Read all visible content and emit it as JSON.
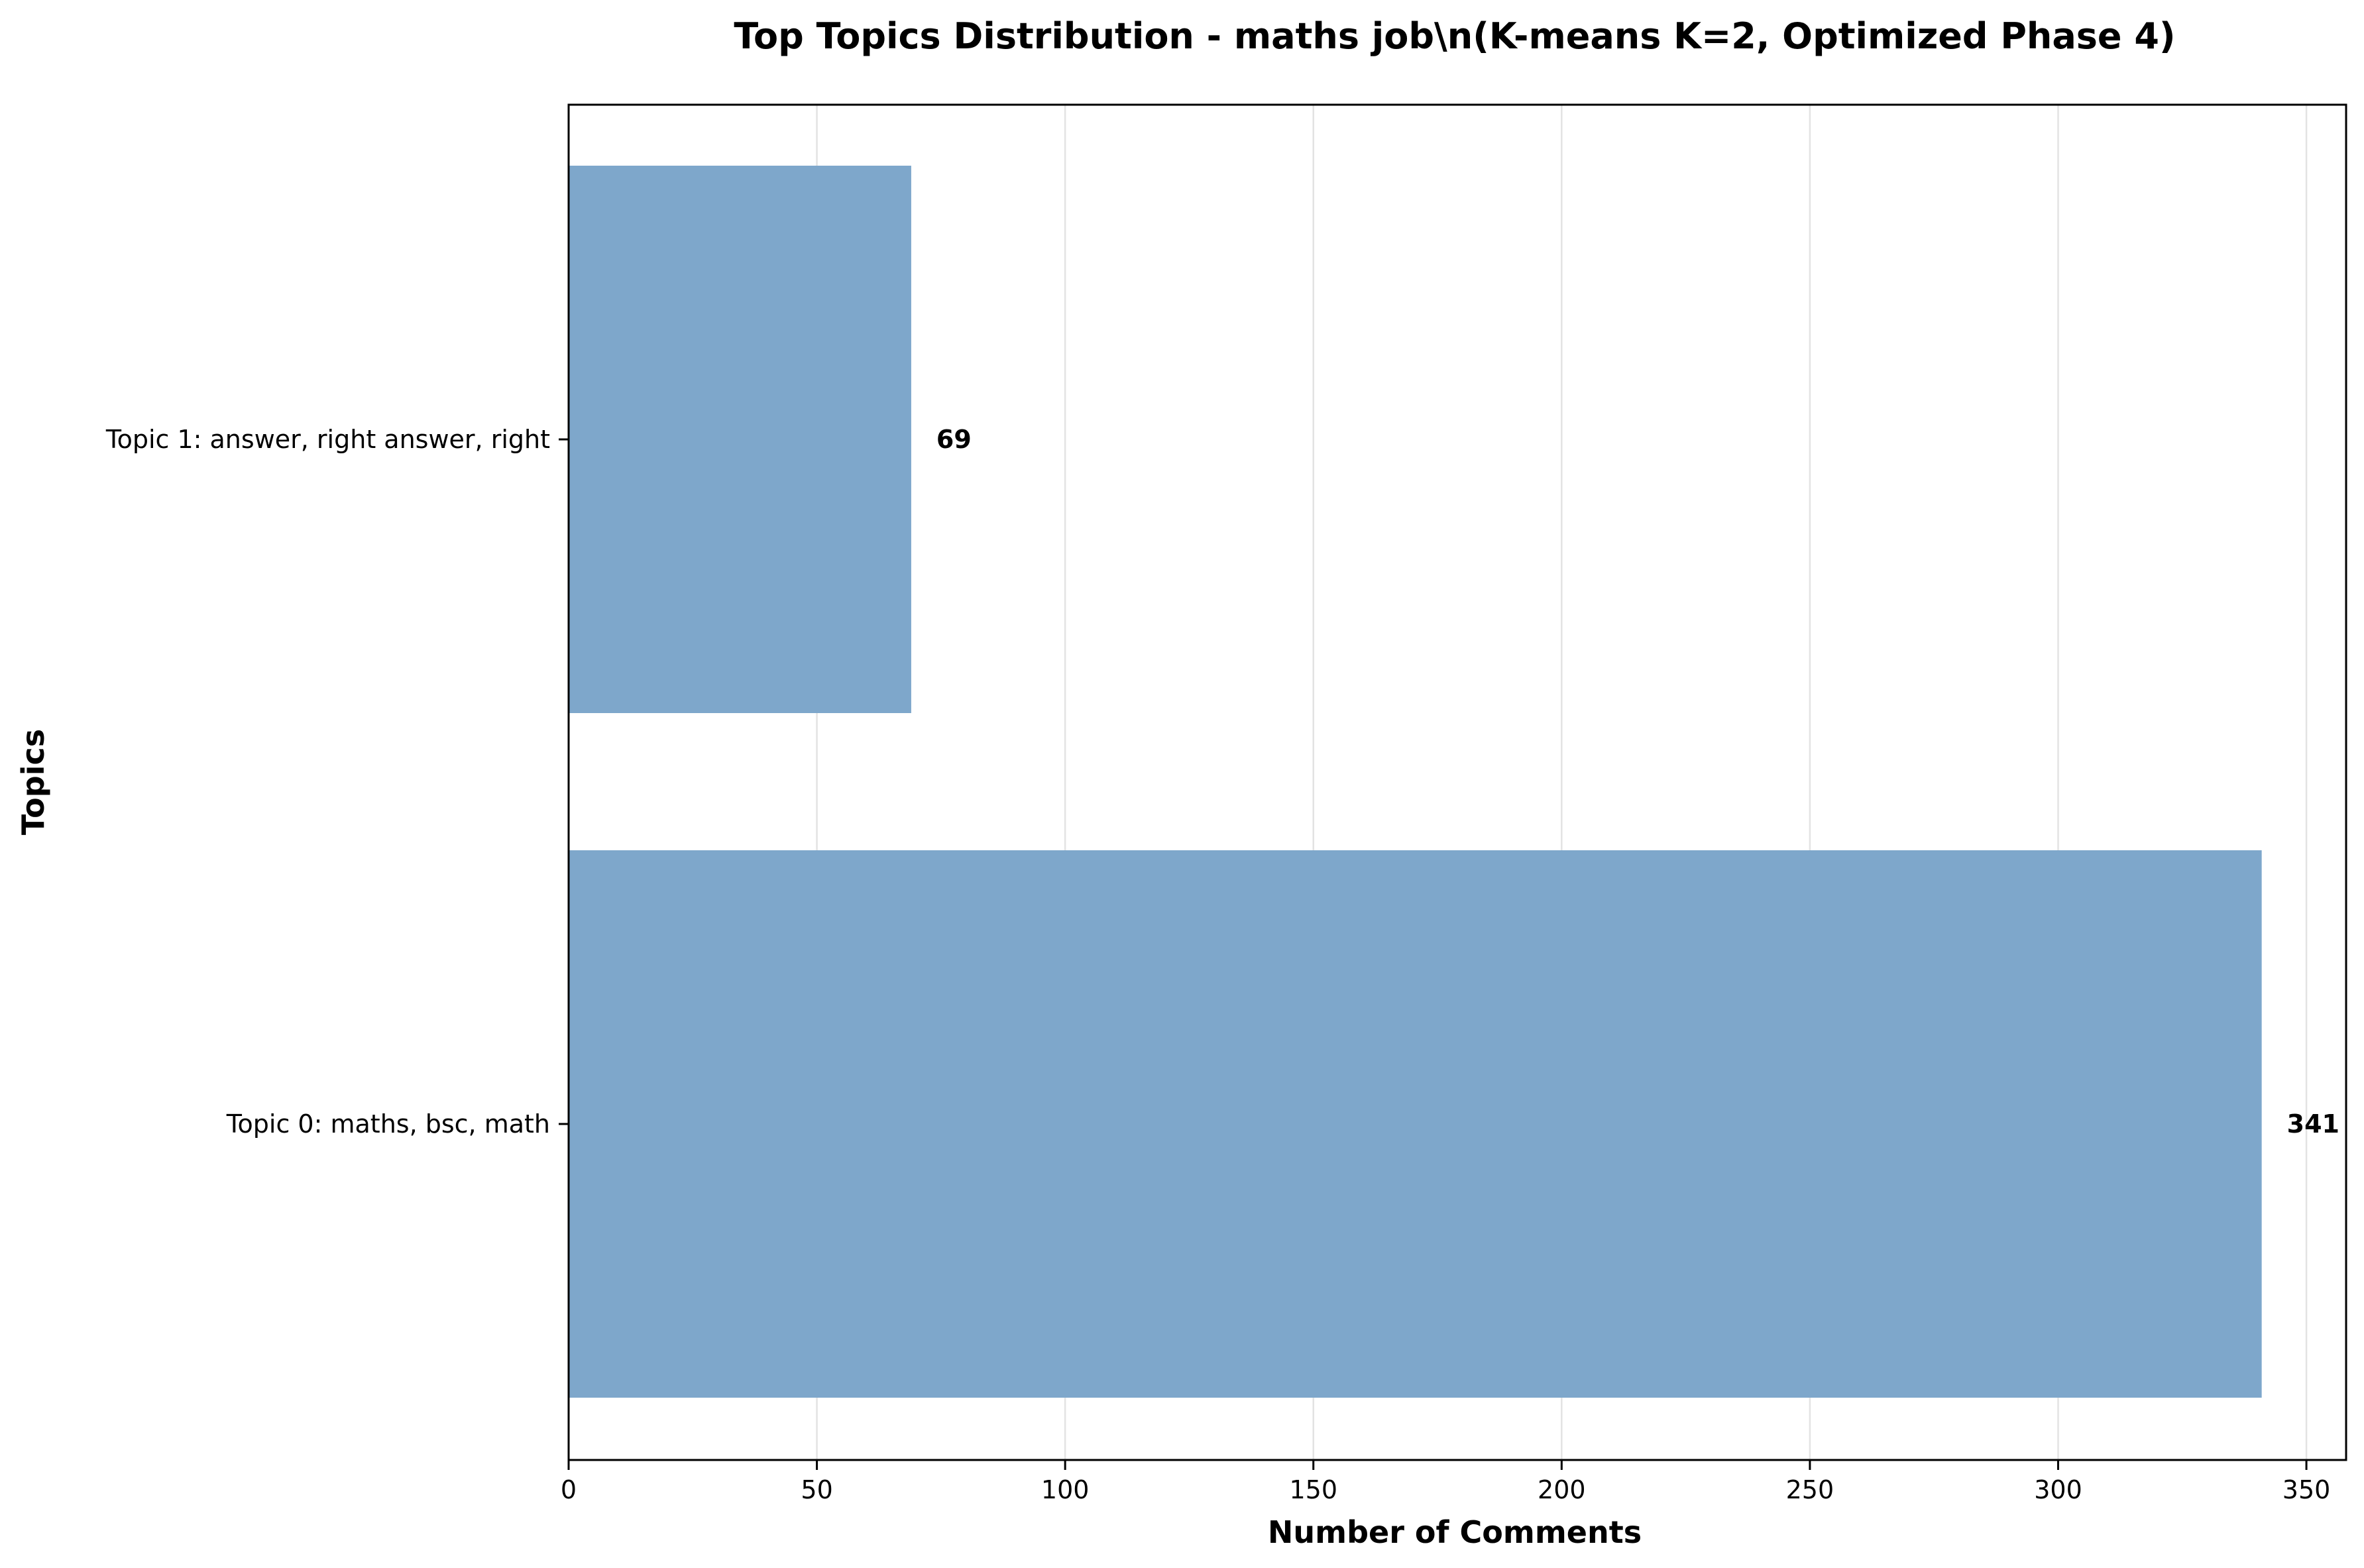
{
  "chart_data": {
    "type": "bar",
    "orientation": "horizontal",
    "title": "Top Topics Distribution - maths job\\n(K-means K=2, Optimized Phase 4)",
    "xlabel": "Number of Comments",
    "ylabel": "Topics",
    "categories": [
      "Topic 0: maths, bsc, math",
      "Topic 1: answer, right answer, right"
    ],
    "values": [
      341,
      69
    ],
    "data_labels": [
      "341",
      "69"
    ],
    "xlim": [
      0,
      358
    ],
    "xticks": [
      0,
      50,
      100,
      150,
      200,
      250,
      300,
      350
    ],
    "xtick_labels": [
      "0",
      "50",
      "100",
      "150",
      "200",
      "250",
      "300",
      "350"
    ],
    "grid": "x-axis vertical lines",
    "legend": "none",
    "colors": {
      "bar": "#7ea7cb"
    }
  }
}
